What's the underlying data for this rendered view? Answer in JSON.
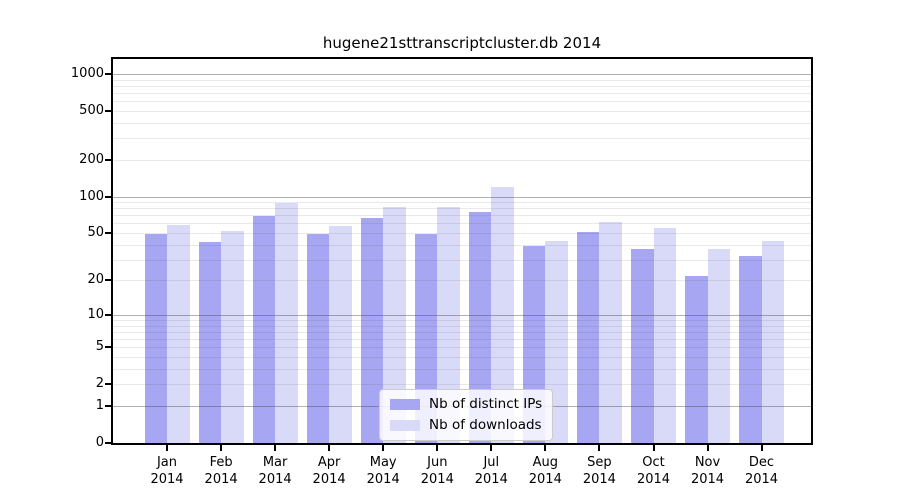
{
  "chart_data": {
    "type": "bar",
    "title": "hugene21sttranscriptcluster.db 2014",
    "xlabel": "",
    "ylabel": "",
    "year": "2014",
    "categories": [
      "Jan",
      "Feb",
      "Mar",
      "Apr",
      "May",
      "Jun",
      "Jul",
      "Aug",
      "Sep",
      "Oct",
      "Nov",
      "Dec"
    ],
    "series": [
      {
        "name": "Nb of distinct IPs",
        "color": "#a6a6f2",
        "values": [
          49,
          42,
          69,
          49,
          67,
          49,
          75,
          39,
          51,
          37,
          22,
          32
        ]
      },
      {
        "name": "Nb of downloads",
        "color": "#d9d9f8",
        "values": [
          58,
          52,
          88,
          57,
          82,
          82,
          120,
          43,
          62,
          55,
          37,
          43
        ]
      }
    ],
    "yaxis": {
      "scale": "log10(1+x)",
      "ylim": [
        0,
        1300
      ],
      "ticks": [
        0,
        1,
        2,
        5,
        10,
        20,
        50,
        100,
        200,
        500,
        1000
      ]
    },
    "grid": {
      "major": [
        1,
        10,
        100,
        1000
      ],
      "minor": [
        2,
        3,
        4,
        5,
        6,
        7,
        8,
        9,
        20,
        30,
        40,
        50,
        60,
        70,
        80,
        90,
        200,
        300,
        400,
        500,
        600,
        700,
        800,
        900
      ]
    },
    "legend_position": "lower center"
  }
}
